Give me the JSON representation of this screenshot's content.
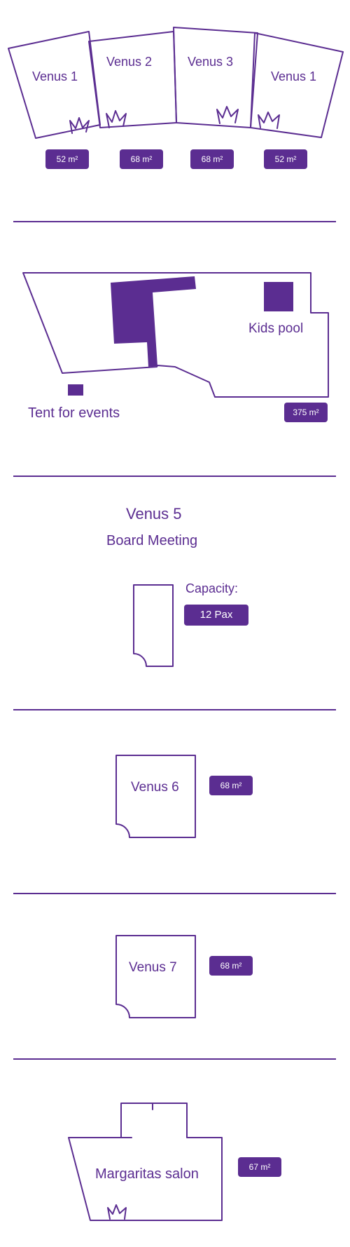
{
  "accent_color": "#5b2d91",
  "rooms_row": {
    "rooms": [
      {
        "name": "Venus 1",
        "area": "52 m²"
      },
      {
        "name": "Venus 2",
        "area": "68 m²"
      },
      {
        "name": "Venus 3",
        "area": "68 m²"
      },
      {
        "name": "Venus 1",
        "area": "52 m²"
      }
    ],
    "icon": "plant-icon"
  },
  "garden": {
    "tent_label": "Tent for events",
    "pool_label": "Kids pool",
    "area": "375 m²"
  },
  "venus5": {
    "title": "Venus 5",
    "subtitle": "Board Meeting",
    "capacity_label": "Capacity:",
    "capacity_value": "12 Pax"
  },
  "venus6": {
    "name": "Venus 6",
    "area": "68 m²"
  },
  "venus7": {
    "name": "Venus 7",
    "area": "68 m²"
  },
  "margaritas": {
    "name": "Margaritas salon",
    "area": "67 m²",
    "icon": "plant-icon"
  }
}
